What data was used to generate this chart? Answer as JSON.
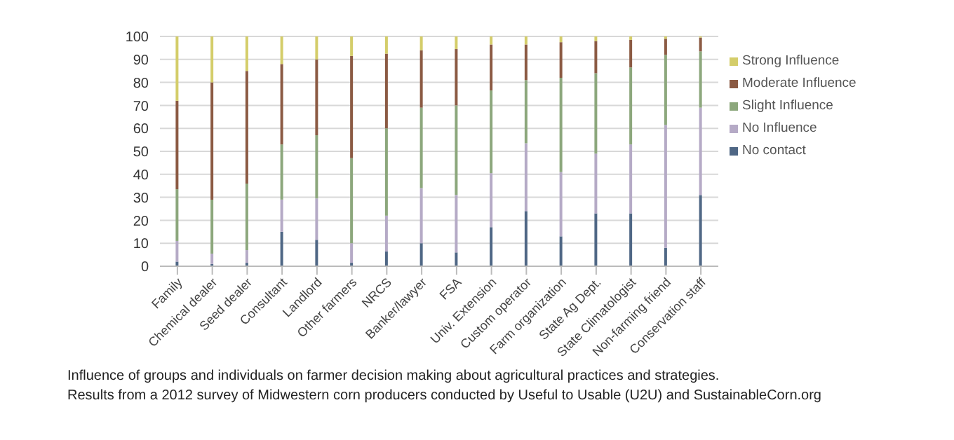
{
  "chart_data": {
    "type": "bar",
    "stacked": true,
    "categories": [
      "Family",
      "Chemical dealer",
      "Seed dealer",
      "Consultant",
      "Landlord",
      "Other farmers",
      "NRCS",
      "Banker/lawyer",
      "FSA",
      "Univ. Extension",
      "Custom operator",
      "Farm organization",
      "State Ag Dept.",
      "State Climatologist",
      "Non-farming friend",
      "Conservation staff"
    ],
    "series": [
      {
        "name": "No contact",
        "color": "#4f6785",
        "values": [
          2,
          1,
          1.5,
          15,
          11.5,
          1.5,
          6.5,
          10,
          6,
          17,
          24,
          13,
          23,
          23,
          8,
          31
        ]
      },
      {
        "name": "No Influence",
        "color": "#b5aac6",
        "values": [
          9,
          4.5,
          5.5,
          14,
          18,
          8.5,
          15.5,
          24,
          25,
          23.5,
          29.5,
          28,
          26,
          30,
          53.5,
          38
        ]
      },
      {
        "name": "Slight Influence",
        "color": "#8ca77c",
        "values": [
          22.5,
          23.5,
          29,
          24,
          27.5,
          37,
          38,
          35,
          39,
          36,
          27.5,
          41,
          35,
          33.5,
          30.5,
          24.5
        ]
      },
      {
        "name": "Moderate Influence",
        "color": "#8b5a43",
        "values": [
          38.5,
          51,
          49,
          35,
          33,
          44.5,
          32.5,
          25,
          24.5,
          20,
          15.5,
          15.5,
          14,
          12,
          7,
          6
        ]
      },
      {
        "name": "Strong Influence",
        "color": "#d4cd6a",
        "values": [
          28,
          20,
          15,
          12,
          10,
          8.5,
          7.5,
          6,
          5.5,
          3.5,
          3.5,
          2.5,
          2,
          1.5,
          1,
          0.5
        ]
      }
    ],
    "ylim": [
      0,
      100
    ],
    "yticks": [
      0,
      10,
      20,
      30,
      40,
      50,
      60,
      70,
      80,
      90,
      100
    ],
    "grid": "y",
    "legend": "right",
    "annotations": [
      "Influence of groups and individuals on farmer decision making about agricultural practices and strategies.",
      "Results from a 2012 survey of Midwestern corn producers conducted by Useful to Usable (U2U) and SustainableCorn.org"
    ]
  }
}
